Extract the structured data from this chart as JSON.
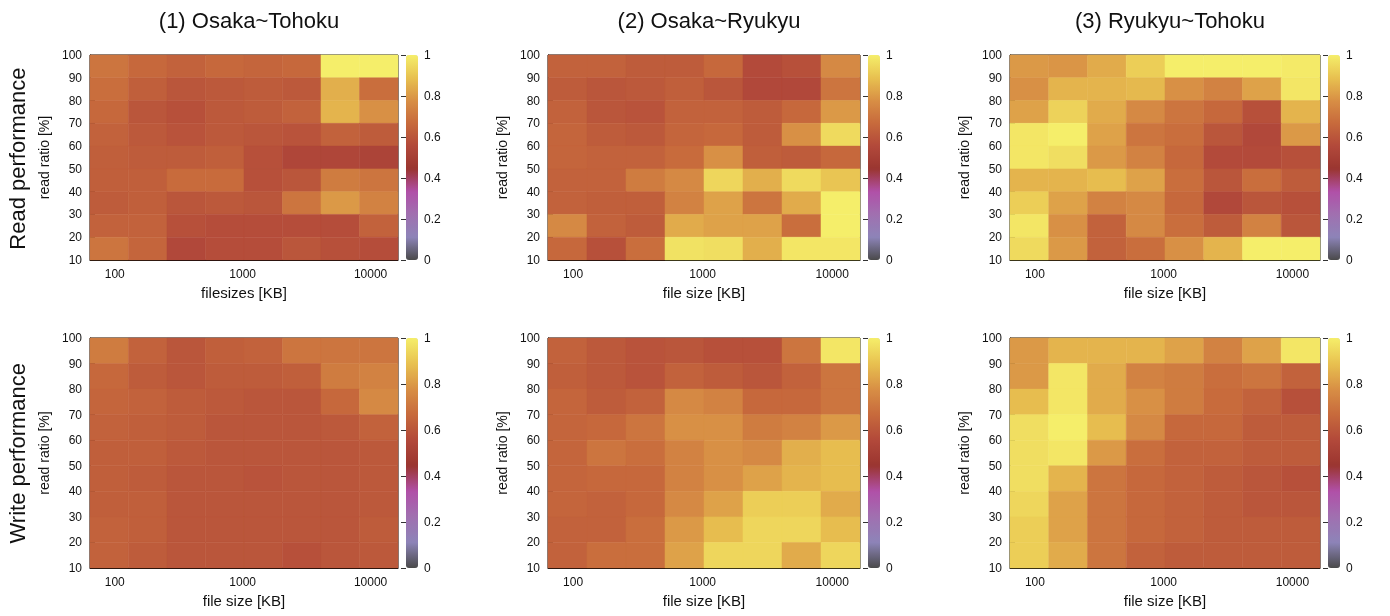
{
  "chart_data": [
    {
      "type": "heatmap",
      "title": "(1) Osaka~Tohoku",
      "subtitle": "Read performance",
      "xlabel": "filesizes [KB]",
      "ylabel": "read ratio [%]",
      "x": [
        90.5,
        181,
        362,
        724,
        1448,
        2896,
        5793,
        11585
      ],
      "cells": [
        [
          0.7,
          0.66,
          0.64,
          0.66,
          0.65,
          0.66,
          1.0,
          1.0
        ],
        [
          0.68,
          0.63,
          0.6,
          0.61,
          0.62,
          0.61,
          0.85,
          0.68
        ],
        [
          0.66,
          0.6,
          0.58,
          0.61,
          0.62,
          0.64,
          0.86,
          0.78
        ],
        [
          0.64,
          0.61,
          0.59,
          0.61,
          0.6,
          0.59,
          0.64,
          0.62
        ],
        [
          0.63,
          0.62,
          0.62,
          0.63,
          0.58,
          0.54,
          0.54,
          0.53
        ],
        [
          0.63,
          0.63,
          0.67,
          0.67,
          0.58,
          0.6,
          0.72,
          0.7
        ],
        [
          0.62,
          0.63,
          0.6,
          0.61,
          0.6,
          0.7,
          0.8,
          0.74
        ],
        [
          0.64,
          0.64,
          0.58,
          0.57,
          0.57,
          0.57,
          0.57,
          0.64
        ],
        [
          0.7,
          0.65,
          0.55,
          0.57,
          0.57,
          0.6,
          0.58,
          0.57
        ]
      ],
      "clim": [
        0,
        1
      ],
      "cticks": [
        0,
        0.2,
        0.4,
        0.6,
        0.8,
        1
      ],
      "xlim": [
        64,
        16384
      ],
      "xticks": [
        100,
        1000,
        10000
      ],
      "ylim": [
        10,
        100
      ],
      "yticks": [
        10,
        20,
        30,
        40,
        50,
        60,
        70,
        80,
        90,
        100
      ],
      "log": "x"
    },
    {
      "type": "heatmap",
      "title": "(2) Osaka~Ryukyu",
      "xlabel": "file size [KB]",
      "ylabel": "read ratio [%]",
      "x": [
        90.5,
        181,
        362,
        724,
        1448,
        2896,
        5793,
        11585
      ],
      "cells": [
        [
          0.64,
          0.64,
          0.62,
          0.62,
          0.66,
          0.56,
          0.58,
          0.76
        ],
        [
          0.62,
          0.6,
          0.61,
          0.63,
          0.6,
          0.55,
          0.55,
          0.7
        ],
        [
          0.64,
          0.6,
          0.59,
          0.64,
          0.64,
          0.62,
          0.66,
          0.8
        ],
        [
          0.65,
          0.62,
          0.61,
          0.65,
          0.66,
          0.62,
          0.78,
          0.95
        ],
        [
          0.65,
          0.64,
          0.64,
          0.67,
          0.78,
          0.63,
          0.62,
          0.66
        ],
        [
          0.64,
          0.64,
          0.72,
          0.76,
          0.94,
          0.85,
          0.95,
          0.9
        ],
        [
          0.64,
          0.63,
          0.63,
          0.74,
          0.82,
          0.7,
          0.84,
          1.0
        ],
        [
          0.76,
          0.64,
          0.62,
          0.84,
          0.82,
          0.82,
          0.68,
          1.0
        ],
        [
          0.66,
          0.58,
          0.68,
          0.97,
          0.96,
          0.85,
          0.98,
          0.98
        ]
      ],
      "clim": [
        0,
        1
      ],
      "cticks": [
        0,
        0.2,
        0.4,
        0.6,
        0.8,
        1
      ],
      "xlim": [
        64,
        16384
      ],
      "xticks": [
        100,
        1000,
        10000
      ],
      "ylim": [
        10,
        100
      ],
      "yticks": [
        10,
        20,
        30,
        40,
        50,
        60,
        70,
        80,
        90,
        100
      ],
      "log": "x"
    },
    {
      "type": "heatmap",
      "title": "(3) Ryukyu~Tohoku",
      "xlabel": "file size [KB]",
      "ylabel": "read ratio [%]",
      "x": [
        90.5,
        181,
        362,
        724,
        1448,
        2896,
        5793,
        11585
      ],
      "cells": [
        [
          0.8,
          0.79,
          0.84,
          0.92,
          1.0,
          1.0,
          1.0,
          0.99
        ],
        [
          0.78,
          0.86,
          0.86,
          0.87,
          0.78,
          0.74,
          0.82,
          0.98
        ],
        [
          0.82,
          0.93,
          0.84,
          0.76,
          0.7,
          0.66,
          0.58,
          0.86
        ],
        [
          0.98,
          1.0,
          0.82,
          0.7,
          0.68,
          0.6,
          0.55,
          0.8
        ],
        [
          0.98,
          0.96,
          0.8,
          0.74,
          0.66,
          0.56,
          0.56,
          0.58
        ],
        [
          0.86,
          0.86,
          0.88,
          0.82,
          0.68,
          0.6,
          0.68,
          0.62
        ],
        [
          0.92,
          0.82,
          0.74,
          0.76,
          0.66,
          0.55,
          0.6,
          0.58
        ],
        [
          0.98,
          0.78,
          0.64,
          0.76,
          0.68,
          0.62,
          0.74,
          0.6
        ],
        [
          0.95,
          0.8,
          0.64,
          0.68,
          0.78,
          0.86,
          1.0,
          1.0
        ]
      ],
      "clim": [
        0,
        1
      ],
      "cticks": [
        0,
        0.2,
        0.4,
        0.6,
        0.8,
        1
      ],
      "xlim": [
        64,
        16384
      ],
      "xticks": [
        100,
        1000,
        10000
      ],
      "ylim": [
        10,
        100
      ],
      "yticks": [
        10,
        20,
        30,
        40,
        50,
        60,
        70,
        80,
        90,
        100
      ],
      "log": "x"
    },
    {
      "type": "heatmap",
      "subtitle": "Write performance",
      "xlabel": "file size [KB]",
      "ylabel": "read ratio [%]",
      "x": [
        90.5,
        181,
        362,
        724,
        1448,
        2896,
        5793,
        11585
      ],
      "cells": [
        [
          0.72,
          0.64,
          0.6,
          0.63,
          0.64,
          0.7,
          0.7,
          0.7
        ],
        [
          0.66,
          0.62,
          0.6,
          0.62,
          0.62,
          0.63,
          0.72,
          0.74
        ],
        [
          0.65,
          0.64,
          0.62,
          0.61,
          0.6,
          0.6,
          0.66,
          0.76
        ],
        [
          0.64,
          0.63,
          0.62,
          0.6,
          0.6,
          0.6,
          0.61,
          0.64
        ],
        [
          0.63,
          0.63,
          0.61,
          0.6,
          0.6,
          0.6,
          0.6,
          0.61
        ],
        [
          0.63,
          0.62,
          0.6,
          0.6,
          0.59,
          0.6,
          0.6,
          0.61
        ],
        [
          0.63,
          0.63,
          0.6,
          0.6,
          0.6,
          0.6,
          0.6,
          0.61
        ],
        [
          0.64,
          0.63,
          0.6,
          0.6,
          0.6,
          0.6,
          0.6,
          0.62
        ],
        [
          0.64,
          0.62,
          0.6,
          0.6,
          0.6,
          0.58,
          0.6,
          0.61
        ]
      ],
      "clim": [
        0,
        1
      ],
      "cticks": [
        0,
        0.2,
        0.4,
        0.6,
        0.8,
        1
      ],
      "xlim": [
        64,
        16384
      ],
      "xticks": [
        100,
        1000,
        10000
      ],
      "ylim": [
        10,
        100
      ],
      "yticks": [
        10,
        20,
        30,
        40,
        50,
        60,
        70,
        80,
        90,
        100
      ],
      "log": "x"
    },
    {
      "type": "heatmap",
      "xlabel": "file size [KB]",
      "ylabel": "read ratio [%]",
      "x": [
        90.5,
        181,
        362,
        724,
        1448,
        2896,
        5793,
        11585
      ],
      "cells": [
        [
          0.64,
          0.61,
          0.59,
          0.6,
          0.58,
          0.58,
          0.7,
          0.98
        ],
        [
          0.63,
          0.61,
          0.59,
          0.64,
          0.62,
          0.6,
          0.64,
          0.7
        ],
        [
          0.65,
          0.62,
          0.64,
          0.76,
          0.74,
          0.66,
          0.66,
          0.7
        ],
        [
          0.65,
          0.66,
          0.7,
          0.78,
          0.78,
          0.72,
          0.74,
          0.8
        ],
        [
          0.65,
          0.7,
          0.68,
          0.74,
          0.78,
          0.76,
          0.85,
          0.88
        ],
        [
          0.65,
          0.66,
          0.66,
          0.74,
          0.78,
          0.82,
          0.86,
          0.88
        ],
        [
          0.65,
          0.64,
          0.66,
          0.76,
          0.82,
          0.92,
          0.92,
          0.84
        ],
        [
          0.64,
          0.64,
          0.68,
          0.8,
          0.88,
          0.94,
          0.94,
          0.88
        ],
        [
          0.64,
          0.68,
          0.68,
          0.82,
          0.94,
          0.94,
          0.84,
          0.94
        ]
      ],
      "clim": [
        0,
        1
      ],
      "cticks": [
        0,
        0.2,
        0.4,
        0.6,
        0.8,
        1
      ],
      "xlim": [
        64,
        16384
      ],
      "xticks": [
        100,
        1000,
        10000
      ],
      "ylim": [
        10,
        100
      ],
      "yticks": [
        10,
        20,
        30,
        40,
        50,
        60,
        70,
        80,
        90,
        100
      ],
      "log": "x"
    },
    {
      "type": "heatmap",
      "xlabel": "file size [KB]",
      "ylabel": "read ratio [%]",
      "x": [
        90.5,
        181,
        362,
        724,
        1448,
        2896,
        5793,
        11585
      ],
      "cells": [
        [
          0.8,
          0.86,
          0.86,
          0.86,
          0.82,
          0.74,
          0.82,
          0.98
        ],
        [
          0.8,
          0.98,
          0.84,
          0.74,
          0.72,
          0.68,
          0.7,
          0.64
        ],
        [
          0.88,
          0.98,
          0.84,
          0.78,
          0.72,
          0.67,
          0.64,
          0.58
        ],
        [
          0.96,
          1.0,
          0.88,
          0.76,
          0.66,
          0.66,
          0.62,
          0.62
        ],
        [
          0.96,
          0.98,
          0.8,
          0.68,
          0.64,
          0.64,
          0.62,
          0.62
        ],
        [
          0.96,
          0.86,
          0.7,
          0.66,
          0.64,
          0.62,
          0.6,
          0.58
        ],
        [
          0.94,
          0.82,
          0.7,
          0.66,
          0.64,
          0.62,
          0.6,
          0.6
        ],
        [
          0.92,
          0.82,
          0.7,
          0.66,
          0.64,
          0.62,
          0.62,
          0.62
        ],
        [
          0.92,
          0.84,
          0.7,
          0.64,
          0.62,
          0.62,
          0.62,
          0.62
        ]
      ],
      "clim": [
        0,
        1
      ],
      "cticks": [
        0,
        0.2,
        0.4,
        0.6,
        0.8,
        1
      ],
      "xlim": [
        64,
        16384
      ],
      "xticks": [
        100,
        1000,
        10000
      ],
      "ylim": [
        10,
        100
      ],
      "yticks": [
        10,
        20,
        30,
        40,
        50,
        60,
        70,
        80,
        90,
        100
      ],
      "log": "x"
    }
  ]
}
